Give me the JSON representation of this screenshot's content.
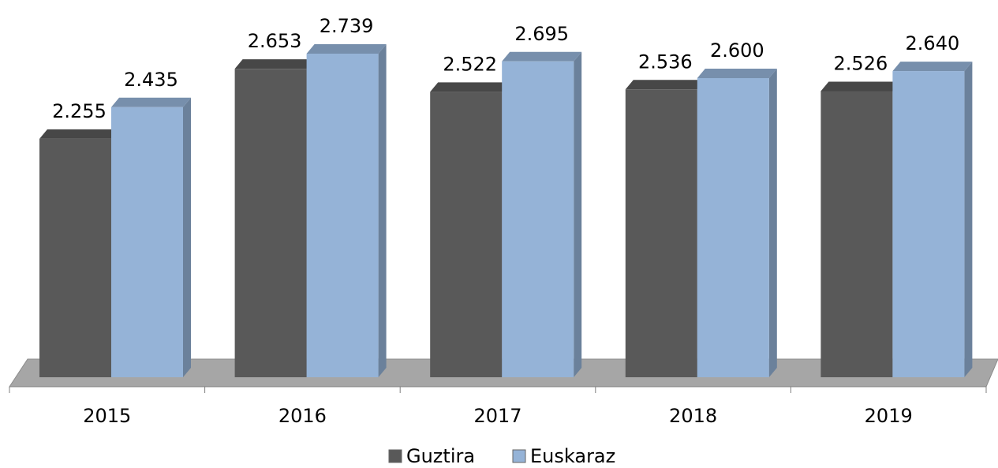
{
  "chart_data": {
    "type": "bar3d",
    "categories": [
      "2015",
      "2016",
      "2017",
      "2018",
      "2019"
    ],
    "series": [
      {
        "name": "Guztira",
        "color": "#595959",
        "values": [
          2.255,
          2.653,
          2.522,
          2.536,
          2.526
        ],
        "value_labels": [
          "2.255",
          "2.653",
          "2.522",
          "2.536",
          "2.526"
        ]
      },
      {
        "name": "Euskaraz",
        "color": "#95b3d7",
        "values": [
          2.435,
          2.739,
          2.695,
          2.6,
          2.64
        ],
        "value_labels": [
          "2.435",
          "2.739",
          "2.695",
          "2.600",
          "2.640"
        ]
      }
    ],
    "ylim": [
      0.9,
      2.8
    ]
  }
}
